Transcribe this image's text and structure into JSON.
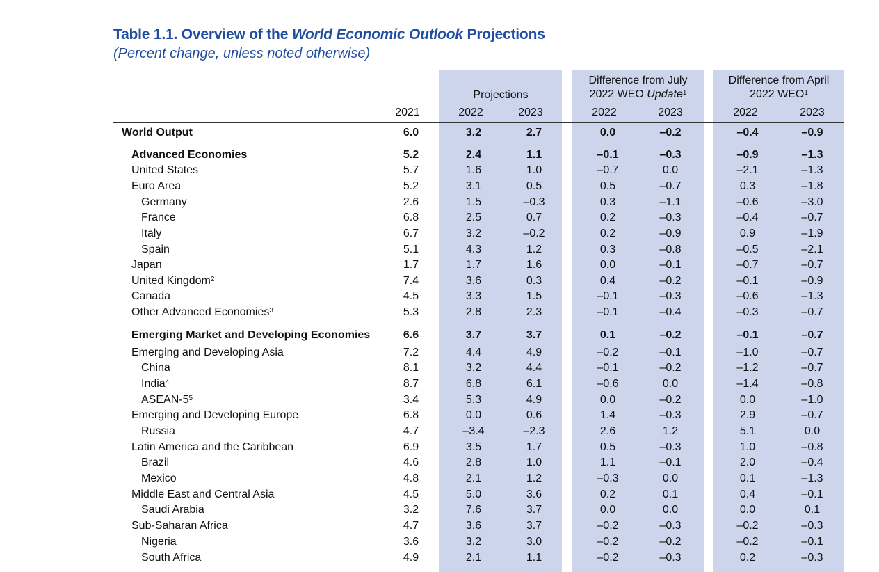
{
  "title": {
    "prefix": "Table 1.1. Overview of the ",
    "italic": "World Economic Outlook",
    "suffix": " Projections"
  },
  "subtitle": "(Percent change, unless noted otherwise)",
  "header": {
    "projections": "Projections",
    "july_line1": "Difference from July",
    "july_line2_prefix": "2022 WEO ",
    "july_line2_italic": "Update",
    "july_sup": "1",
    "april_line1": "Difference from April",
    "april_line2": "2022 WEO",
    "april_sup": "1",
    "years": [
      "2021",
      "2022",
      "2023",
      "2022",
      "2023",
      "2022",
      "2023"
    ]
  },
  "band_color": "#cdd5ec",
  "title_color": "#1f4e9e",
  "rows": [
    {
      "label": "World Output",
      "sup": "",
      "indent": 0,
      "bold": true,
      "values": [
        "6.0",
        "3.2",
        "2.7",
        "0.0",
        "–0.2",
        "–0.4",
        "–0.9"
      ]
    },
    {
      "label": "Advanced Economies",
      "sup": "",
      "indent": 1,
      "bold": true,
      "values": [
        "5.2",
        "2.4",
        "1.1",
        "–0.1",
        "–0.3",
        "–0.9",
        "–1.3"
      ]
    },
    {
      "label": "United States",
      "sup": "",
      "indent": 1,
      "bold": false,
      "values": [
        "5.7",
        "1.6",
        "1.0",
        "–0.7",
        "0.0",
        "–2.1",
        "–1.3"
      ]
    },
    {
      "label": "Euro Area",
      "sup": "",
      "indent": 1,
      "bold": false,
      "values": [
        "5.2",
        "3.1",
        "0.5",
        "0.5",
        "–0.7",
        "0.3",
        "–1.8"
      ]
    },
    {
      "label": "Germany",
      "sup": "",
      "indent": 2,
      "bold": false,
      "values": [
        "2.6",
        "1.5",
        "–0.3",
        "0.3",
        "–1.1",
        "–0.6",
        "–3.0"
      ]
    },
    {
      "label": "France",
      "sup": "",
      "indent": 2,
      "bold": false,
      "values": [
        "6.8",
        "2.5",
        "0.7",
        "0.2",
        "–0.3",
        "–0.4",
        "–0.7"
      ]
    },
    {
      "label": "Italy",
      "sup": "",
      "indent": 2,
      "bold": false,
      "values": [
        "6.7",
        "3.2",
        "–0.2",
        "0.2",
        "–0.9",
        "0.9",
        "–1.9"
      ]
    },
    {
      "label": "Spain",
      "sup": "",
      "indent": 2,
      "bold": false,
      "values": [
        "5.1",
        "4.3",
        "1.2",
        "0.3",
        "–0.8",
        "–0.5",
        "–2.1"
      ]
    },
    {
      "label": "Japan",
      "sup": "",
      "indent": 1,
      "bold": false,
      "values": [
        "1.7",
        "1.7",
        "1.6",
        "0.0",
        "–0.1",
        "–0.7",
        "–0.7"
      ]
    },
    {
      "label": "United Kingdom",
      "sup": "2",
      "indent": 1,
      "bold": false,
      "values": [
        "7.4",
        "3.6",
        "0.3",
        "0.4",
        "–0.2",
        "–0.1",
        "–0.9"
      ]
    },
    {
      "label": "Canada",
      "sup": "",
      "indent": 1,
      "bold": false,
      "values": [
        "4.5",
        "3.3",
        "1.5",
        "–0.1",
        "–0.3",
        "–0.6",
        "–1.3"
      ]
    },
    {
      "label": "Other Advanced Economies",
      "sup": "3",
      "indent": 1,
      "bold": false,
      "values": [
        "5.3",
        "2.8",
        "2.3",
        "–0.1",
        "–0.4",
        "–0.3",
        "–0.7"
      ]
    },
    {
      "label": "Emerging Market and Developing Economies",
      "sup": "",
      "indent": 1,
      "bold": true,
      "values": [
        "6.6",
        "3.7",
        "3.7",
        "0.1",
        "–0.2",
        "–0.1",
        "–0.7"
      ]
    },
    {
      "label": "Emerging and Developing Asia",
      "sup": "",
      "indent": 1,
      "bold": false,
      "values": [
        "7.2",
        "4.4",
        "4.9",
        "–0.2",
        "–0.1",
        "–1.0",
        "–0.7"
      ]
    },
    {
      "label": "China",
      "sup": "",
      "indent": 2,
      "bold": false,
      "values": [
        "8.1",
        "3.2",
        "4.4",
        "–0.1",
        "–0.2",
        "–1.2",
        "–0.7"
      ]
    },
    {
      "label": "India",
      "sup": "4",
      "indent": 2,
      "bold": false,
      "values": [
        "8.7",
        "6.8",
        "6.1",
        "–0.6",
        "0.0",
        "–1.4",
        "–0.8"
      ]
    },
    {
      "label": "ASEAN-5",
      "sup": "5",
      "indent": 2,
      "bold": false,
      "values": [
        "3.4",
        "5.3",
        "4.9",
        "0.0",
        "–0.2",
        "0.0",
        "–1.0"
      ]
    },
    {
      "label": "Emerging and Developing Europe",
      "sup": "",
      "indent": 1,
      "bold": false,
      "values": [
        "6.8",
        "0.0",
        "0.6",
        "1.4",
        "–0.3",
        "2.9",
        "–0.7"
      ]
    },
    {
      "label": "Russia",
      "sup": "",
      "indent": 2,
      "bold": false,
      "values": [
        "4.7",
        "–3.4",
        "–2.3",
        "2.6",
        "1.2",
        "5.1",
        "0.0"
      ]
    },
    {
      "label": "Latin America and the Caribbean",
      "sup": "",
      "indent": 1,
      "bold": false,
      "values": [
        "6.9",
        "3.5",
        "1.7",
        "0.5",
        "–0.3",
        "1.0",
        "–0.8"
      ]
    },
    {
      "label": "Brazil",
      "sup": "",
      "indent": 2,
      "bold": false,
      "values": [
        "4.6",
        "2.8",
        "1.0",
        "1.1",
        "–0.1",
        "2.0",
        "–0.4"
      ]
    },
    {
      "label": "Mexico",
      "sup": "",
      "indent": 2,
      "bold": false,
      "values": [
        "4.8",
        "2.1",
        "1.2",
        "–0.3",
        "0.0",
        "0.1",
        "–1.3"
      ]
    },
    {
      "label": "Middle East and Central Asia",
      "sup": "",
      "indent": 1,
      "bold": false,
      "values": [
        "4.5",
        "5.0",
        "3.6",
        "0.2",
        "0.1",
        "0.4",
        "–0.1"
      ]
    },
    {
      "label": "Saudi Arabia",
      "sup": "",
      "indent": 2,
      "bold": false,
      "values": [
        "3.2",
        "7.6",
        "3.7",
        "0.0",
        "0.0",
        "0.0",
        "0.1"
      ]
    },
    {
      "label": "Sub-Saharan Africa",
      "sup": "",
      "indent": 1,
      "bold": false,
      "values": [
        "4.7",
        "3.6",
        "3.7",
        "–0.2",
        "–0.3",
        "–0.2",
        "–0.3"
      ]
    },
    {
      "label": "Nigeria",
      "sup": "",
      "indent": 2,
      "bold": false,
      "values": [
        "3.6",
        "3.2",
        "3.0",
        "–0.2",
        "–0.2",
        "–0.2",
        "–0.1"
      ]
    },
    {
      "label": "South Africa",
      "sup": "",
      "indent": 2,
      "bold": false,
      "values": [
        "4.9",
        "2.1",
        "1.1",
        "–0.2",
        "–0.3",
        "0.2",
        "–0.3"
      ]
    }
  ]
}
